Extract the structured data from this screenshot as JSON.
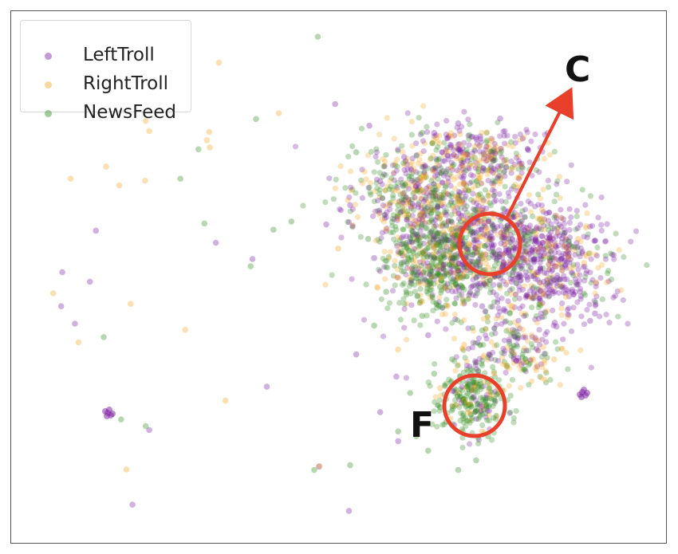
{
  "chart_data": {
    "type": "scatter",
    "title": "",
    "xlabel": "",
    "ylabel": "",
    "xlim": [
      0,
      100
    ],
    "ylim": [
      0,
      100
    ],
    "grid": false,
    "legend": {
      "placement": "top-left"
    },
    "series": [
      {
        "name": "LeftTroll",
        "color": "#7b1fa2",
        "alpha": 0.35,
        "points": [
          [
            92.8,
            42.5
          ],
          [
            86.1,
            40.6
          ],
          [
            18.5,
            18.3
          ],
          [
            15.7,
            2.8
          ],
          [
            38.1,
            27.3
          ],
          [
            35.7,
            53.8
          ],
          [
            9.6,
            59.7
          ],
          [
            29.6,
            57.2
          ],
          [
            6.1,
            40.4
          ],
          [
            3.8,
            44.0
          ],
          [
            4.0,
            51.1
          ],
          [
            8.6,
            49.1
          ],
          [
            70.0,
            82.0
          ],
          [
            66.0,
            80.0
          ],
          [
            73.0,
            79.0
          ],
          [
            77.0,
            83.0
          ],
          [
            56.0,
            54.0
          ],
          [
            53.0,
            34.0
          ],
          [
            57.0,
            22.0
          ],
          [
            60.0,
            16.0
          ],
          [
            51.8,
            1.5
          ],
          [
            46.8,
            10.7
          ],
          [
            59.7,
            29.4
          ],
          [
            55.2,
            81.5
          ],
          [
            49.5,
            86.0
          ],
          [
            86.4,
            39.8
          ],
          [
            82.0,
            55.0
          ],
          [
            78.0,
            60.0
          ],
          [
            68.0,
            63.0
          ],
          [
            74.0,
            44.0
          ],
          [
            89.0,
            47.0
          ],
          [
            92.0,
            41.0
          ],
          [
            80.0,
            50.0
          ],
          [
            63.0,
            69.0
          ],
          [
            70.0,
            48.0
          ],
          [
            65.0,
            38.0
          ],
          [
            57.0,
            70.0
          ],
          [
            48.0,
            61.0
          ],
          [
            52.0,
            65.0
          ],
          [
            61.0,
            75.0
          ]
        ]
      },
      {
        "name": "RightTroll",
        "color": "#f5a623",
        "alpha": 0.35,
        "points": [
          [
            5.4,
            70.5
          ],
          [
            11.3,
            73.0
          ],
          [
            13.5,
            69.1
          ],
          [
            17.8,
            70.1
          ],
          [
            18.5,
            80.4
          ],
          [
            28.1,
            78.5
          ],
          [
            15.4,
            44.5
          ],
          [
            6.7,
            36.5
          ],
          [
            2.5,
            46.7
          ],
          [
            14.7,
            10.1
          ],
          [
            46.9,
            10.8
          ],
          [
            31.2,
            24.4
          ],
          [
            24.5,
            39.1
          ],
          [
            28.5,
            80.2
          ],
          [
            40.1,
            84.1
          ],
          [
            30.1,
            94.6
          ],
          [
            17.9,
            82.5
          ],
          [
            28.6,
            77.0
          ],
          [
            87.3,
            51.5
          ],
          [
            90.0,
            58.0
          ],
          [
            84.0,
            64.0
          ],
          [
            91.0,
            53.0
          ],
          [
            80.0,
            40.0
          ],
          [
            76.0,
            30.0
          ],
          [
            72.0,
            22.0
          ],
          [
            77.0,
            70.0
          ],
          [
            83.0,
            59.0
          ],
          [
            88.0,
            46.0
          ],
          [
            85.0,
            57.0
          ],
          [
            75.0,
            52.0
          ],
          [
            71.0,
            36.0
          ],
          [
            64.0,
            45.0
          ],
          [
            67.0,
            27.0
          ],
          [
            60.0,
            35.0
          ],
          [
            74.0,
            18.0
          ],
          [
            66.0,
            55.0
          ],
          [
            70.0,
            66.0
          ],
          [
            58.0,
            60.0
          ],
          [
            50.0,
            56.0
          ],
          [
            62.0,
            50.0
          ],
          [
            79.0,
            44.0
          ],
          [
            86.0,
            33.0
          ],
          [
            92.0,
            55.0
          ],
          [
            93.0,
            49.0
          ]
        ]
      },
      {
        "name": "NewsFeed",
        "color": "#2e8b1e",
        "alpha": 0.35,
        "points": [
          [
            46.6,
            100.0
          ],
          [
            36.3,
            82.9
          ],
          [
            23.7,
            70.5
          ],
          [
            26.7,
            76.6
          ],
          [
            27.7,
            61.2
          ],
          [
            35.4,
            52.3
          ],
          [
            39.2,
            59.9
          ],
          [
            42.2,
            61.6
          ],
          [
            10.9,
            37.6
          ],
          [
            13.8,
            20.5
          ],
          [
            17.9,
            19.1
          ],
          [
            46.0,
            10.0
          ],
          [
            52.0,
            11.0
          ],
          [
            60.0,
            18.0
          ],
          [
            65.0,
            14.0
          ],
          [
            70.0,
            10.0
          ],
          [
            73.0,
            12.0
          ],
          [
            68.0,
            20.0
          ],
          [
            62.0,
            26.0
          ],
          [
            71.0,
            24.0
          ],
          [
            75.0,
            17.0
          ],
          [
            66.0,
            30.0
          ],
          [
            64.0,
            42.0
          ],
          [
            58.0,
            47.0
          ],
          [
            55.0,
            58.0
          ],
          [
            60.0,
            65.0
          ],
          [
            68.0,
            72.0
          ],
          [
            72.0,
            60.0
          ],
          [
            56.0,
            40.0
          ],
          [
            74.0,
            39.0
          ],
          [
            80.0,
            38.0
          ],
          [
            64.0,
            80.0
          ],
          [
            53.0,
            76.0
          ],
          [
            67.0,
            48.0
          ],
          [
            61.0,
            57.0
          ],
          [
            69.0,
            33.0
          ],
          [
            63.0,
            17.0
          ],
          [
            67.0,
            23.0
          ]
        ]
      }
    ]
  },
  "legend": {
    "items": [
      {
        "label": "LeftTroll",
        "color": "#7b1fa2"
      },
      {
        "label": "RightTroll",
        "color": "#f5a623"
      },
      {
        "label": "NewsFeed",
        "color": "#2e8b1e"
      }
    ]
  },
  "annotations": [
    {
      "label": "C",
      "shape": "circle-with-arrow",
      "color": "#e8402a"
    },
    {
      "label": "F",
      "shape": "circle",
      "color": "#e8402a"
    }
  ]
}
